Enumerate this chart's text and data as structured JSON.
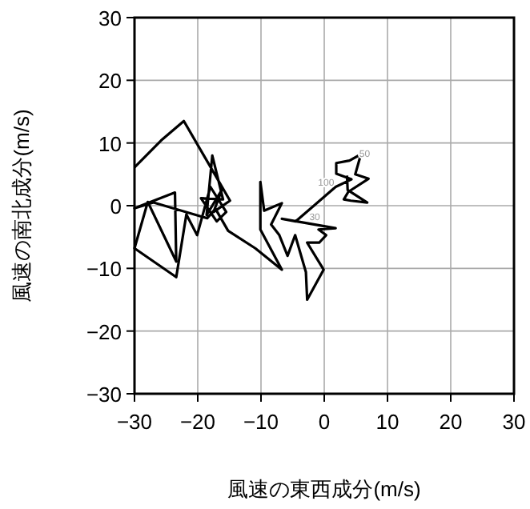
{
  "chart_data": {
    "type": "line",
    "xlabel": "風速の東西成分(m/s)",
    "ylabel": "風速の南北成分(m/s)",
    "xlim": [
      -30,
      30
    ],
    "ylim": [
      -30,
      30
    ],
    "xticks": [
      -30,
      -20,
      -10,
      0,
      10,
      20,
      30
    ],
    "yticks": [
      -30,
      -20,
      -10,
      0,
      10,
      20,
      30
    ],
    "grid": true,
    "marker": "none",
    "line_style": "solid",
    "series": [
      {
        "color": "#000000",
        "x": [
          -30,
          -25.8,
          -22.2,
          -14.9,
          -17.5,
          -16.2,
          -18.6,
          -17.7,
          -16,
          -19.5,
          -17,
          -15.5,
          -18,
          -20.1,
          -21.8,
          -23.4,
          -30,
          -27.9,
          -23.4,
          -23.6,
          -30,
          -27,
          -18.5,
          -17.2,
          -15.2,
          -10.9,
          -6.7,
          -10.1,
          -10.1,
          -9.5,
          -6.7,
          -8.4,
          -7.1,
          -5.8,
          -4.6,
          -2.9,
          -2.7,
          -0.1,
          -2.7,
          -0.8,
          0.3,
          -0.9,
          1.8,
          -6.7,
          -4.5,
          1.8,
          4.3,
          1.9,
          1.9,
          4,
          5.8,
          4.9,
          7,
          3.8,
          3.1,
          4.2,
          6.8,
          3.7,
          3.6
        ],
        "values": [
          6.1,
          10.4,
          13.5,
          0.8,
          -1,
          2.5,
          -1.5,
          8,
          1,
          1.2,
          -2.5,
          -1,
          3,
          -4.7,
          -1.4,
          -11.4,
          -6.8,
          0.6,
          -8.9,
          2.1,
          -0.4,
          0.5,
          -2,
          -0.5,
          -4,
          -6.8,
          -10.2,
          -3.8,
          3.8,
          -0.8,
          0.4,
          -3,
          -4.7,
          -8,
          -4.7,
          -10.6,
          -15,
          -10.2,
          -5.9,
          -5.9,
          -4.7,
          -3.8,
          -3.6,
          -2.1,
          -2.5,
          3,
          4.2,
          5.1,
          6.8,
          7.2,
          8.2,
          5,
          4.3,
          2.2,
          1,
          0.8,
          0.5,
          2.5,
          4.8
        ]
      }
    ],
    "annotations": [
      {
        "text": "30",
        "x": -1.5,
        "y": -2.3
      },
      {
        "text": "100",
        "x": 0.3,
        "y": 3.2
      },
      {
        "text": "50",
        "x": 6.4,
        "y": 7.8
      }
    ]
  }
}
